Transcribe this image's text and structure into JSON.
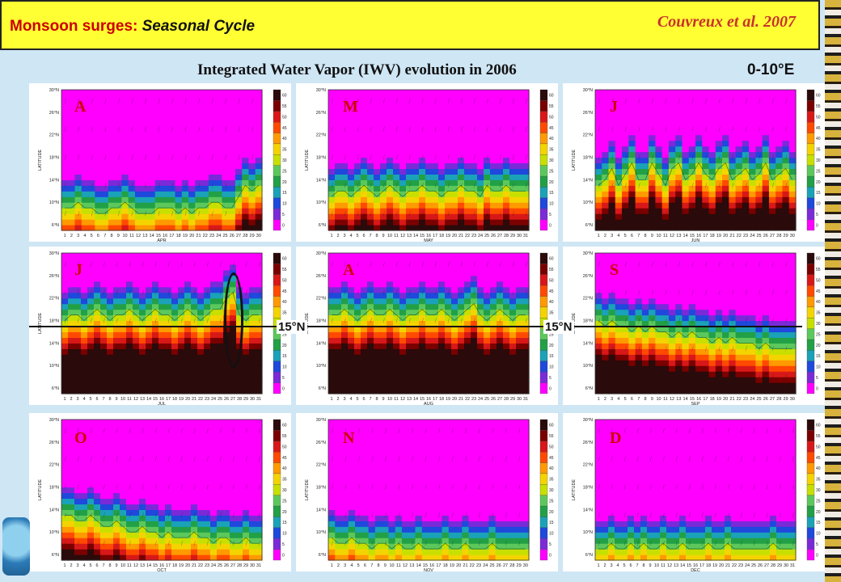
{
  "header": {
    "title": "Monsoon surges:",
    "subtitle": "Seasonal Cycle",
    "citation": "Couvreux et al. 2007"
  },
  "main_title": "Integrated Water Vapor (IWV) evolution in 2006",
  "longitude": "0-10°E",
  "ref_line_label": "15°N",
  "chart_data": {
    "type": "heatmap",
    "variable": "Integrated Water Vapor (IWV)",
    "year": 2006,
    "ylabel": "LATITUDE",
    "lat_ticks": [
      "30°N",
      "26°N",
      "22°N",
      "18°N",
      "14°N",
      "10°N",
      "6°N"
    ],
    "lat_values": [
      30,
      26,
      22,
      18,
      14,
      10,
      6
    ],
    "ylim": [
      5,
      30
    ],
    "colorbar_ticks": [
      60,
      55,
      50,
      45,
      40,
      35,
      30,
      25,
      20,
      15,
      10,
      5,
      0
    ],
    "colorbar_colors": [
      "#2a0a0a",
      "#7a0000",
      "#d81818",
      "#ff4a00",
      "#ff9a00",
      "#f4d400",
      "#c8e000",
      "#5cc85c",
      "#22a046",
      "#1aa2b8",
      "#1f48dc",
      "#7a2ad8",
      "#ff00ff"
    ],
    "reference_latitude": 15,
    "panels": [
      {
        "letter": "A",
        "month": "APR",
        "days": 30,
        "front": [
          9,
          9,
          10,
          9,
          9,
          8,
          8,
          9,
          9,
          10,
          9,
          8,
          8,
          8,
          9,
          9,
          9,
          8,
          9,
          8,
          9,
          9,
          10,
          10,
          9,
          9,
          11,
          13,
          12,
          13
        ]
      },
      {
        "letter": "M",
        "month": "MAY",
        "days": 31,
        "front": [
          11,
          12,
          12,
          11,
          12,
          13,
          12,
          11,
          12,
          13,
          12,
          11,
          12,
          12,
          13,
          12,
          12,
          11,
          12,
          12,
          13,
          12,
          12,
          11,
          13,
          12,
          12,
          13,
          12,
          12,
          12
        ]
      },
      {
        "letter": "J",
        "month": "JUN",
        "days": 30,
        "front": [
          13,
          14,
          16,
          13,
          15,
          17,
          14,
          14,
          17,
          15,
          13,
          16,
          17,
          14,
          15,
          17,
          15,
          14,
          16,
          17,
          14,
          15,
          16,
          14,
          15,
          17,
          14,
          15,
          16,
          14
        ]
      },
      {
        "letter": "J",
        "month": "JUL",
        "days": 31,
        "front": [
          18,
          19,
          19,
          18,
          19,
          20,
          19,
          18,
          19,
          19,
          20,
          19,
          18,
          19,
          20,
          19,
          19,
          18,
          19,
          20,
          19,
          18,
          19,
          20,
          20,
          22,
          23,
          19,
          18,
          19,
          19
        ]
      },
      {
        "letter": "A",
        "month": "AUG",
        "days": 31,
        "front": [
          19,
          19,
          20,
          19,
          18,
          19,
          20,
          19,
          19,
          20,
          19,
          18,
          19,
          19,
          20,
          19,
          19,
          20,
          19,
          18,
          19,
          20,
          21,
          19,
          18,
          19,
          20,
          19,
          18,
          19,
          19
        ]
      },
      {
        "letter": "S",
        "month": "SEP",
        "days": 30,
        "front": [
          18,
          17,
          18,
          17,
          17,
          16,
          17,
          16,
          17,
          16,
          16,
          15,
          16,
          15,
          16,
          15,
          15,
          14,
          15,
          14,
          15,
          14,
          14,
          14,
          13,
          14,
          13,
          13,
          13,
          13
        ]
      },
      {
        "letter": "O",
        "month": "OCT",
        "days": 31,
        "front": [
          13,
          13,
          12,
          12,
          13,
          12,
          11,
          11,
          12,
          11,
          10,
          10,
          11,
          10,
          10,
          9,
          10,
          9,
          9,
          9,
          10,
          9,
          9,
          8,
          9,
          9,
          8,
          8,
          9,
          8,
          8
        ]
      },
      {
        "letter": "N",
        "month": "NOV",
        "days": 30,
        "front": [
          9,
          8,
          8,
          9,
          8,
          8,
          7,
          8,
          8,
          7,
          8,
          7,
          7,
          8,
          7,
          7,
          7,
          8,
          7,
          7,
          8,
          7,
          7,
          7,
          8,
          7,
          7,
          7,
          7,
          7
        ]
      },
      {
        "letter": "D",
        "month": "DEC",
        "days": 31,
        "front": [
          7,
          7,
          8,
          7,
          7,
          8,
          7,
          8,
          7,
          7,
          8,
          7,
          7,
          8,
          7,
          7,
          7,
          8,
          7,
          7,
          8,
          7,
          7,
          7,
          7,
          7,
          7,
          8,
          7,
          7,
          7
        ]
      }
    ]
  }
}
